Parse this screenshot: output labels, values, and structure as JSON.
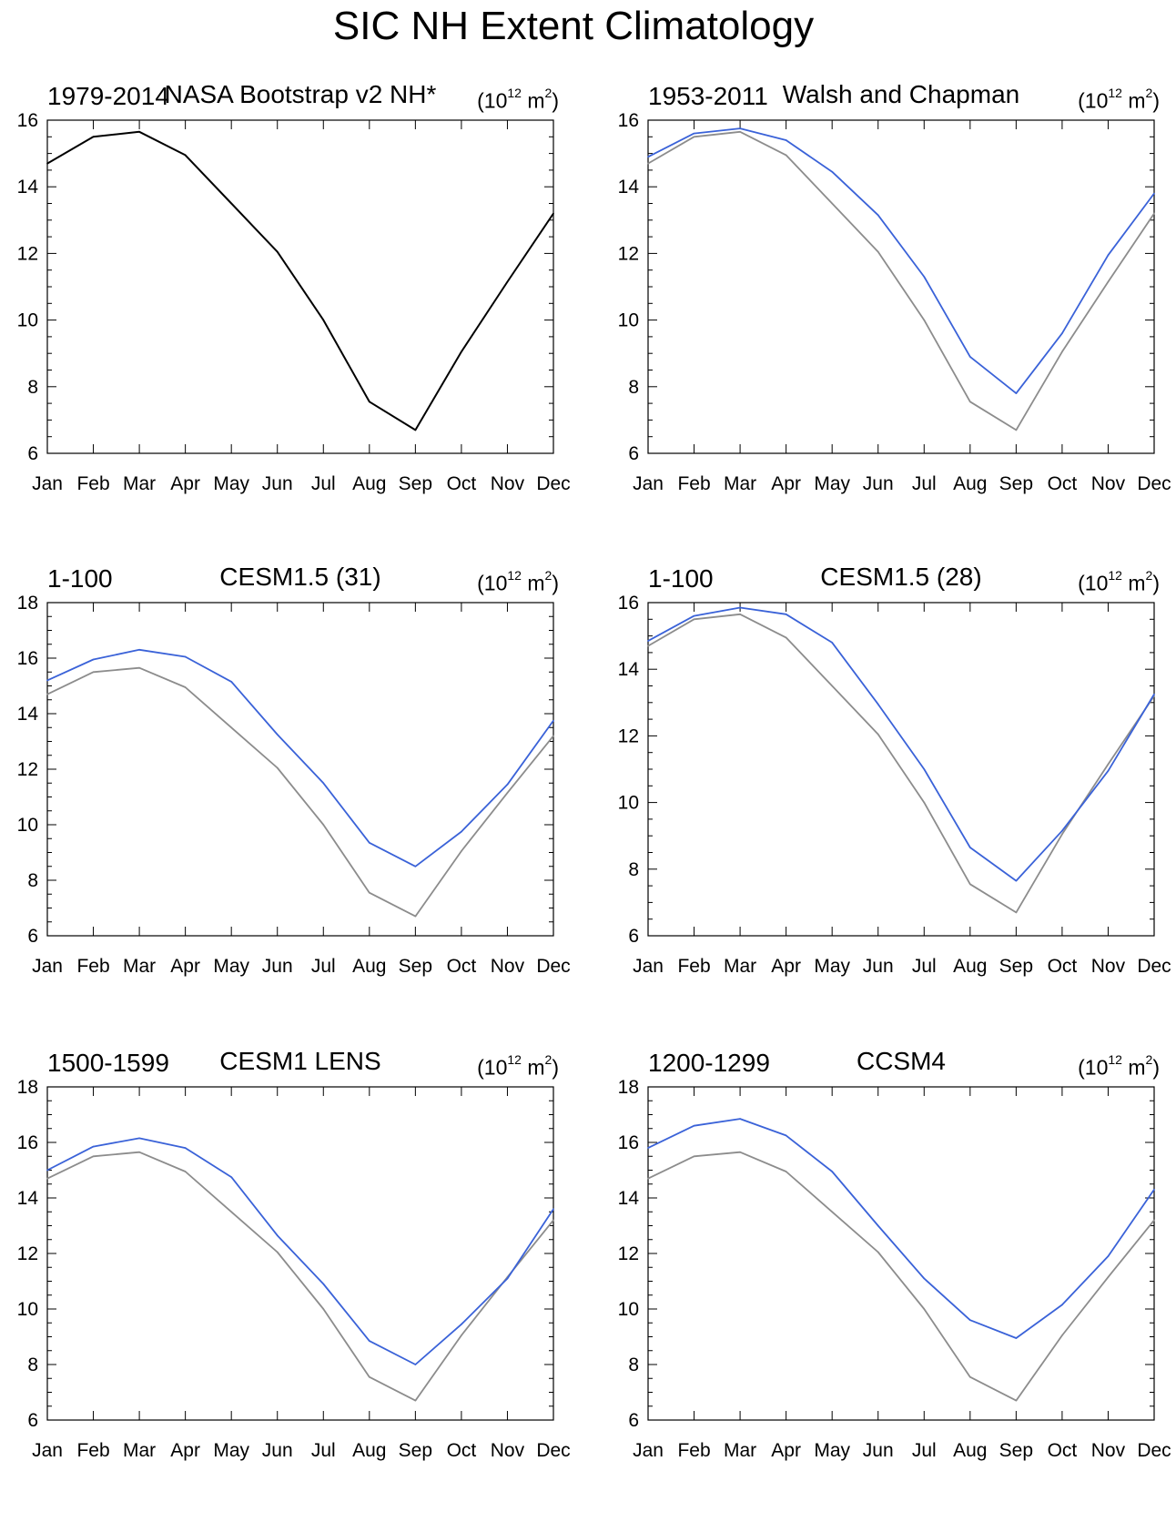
{
  "figure": {
    "title": "SIC NH Extent Climatology"
  },
  "colors": {
    "observed": "#000000",
    "model": "#3a62d8",
    "reference": "#8c8c8c"
  },
  "chart_data": [
    {
      "type": "line",
      "period": "1979-2014",
      "model": "NASA Bootstrap v2 NH*",
      "units_base": "(10",
      "units_exp": "12",
      "units_mid": " m",
      "units_exp2": "2",
      "units_end": ")",
      "categories": [
        "Jan",
        "Feb",
        "Mar",
        "Apr",
        "May",
        "Jun",
        "Jul",
        "Aug",
        "Sep",
        "Oct",
        "Nov",
        "Dec"
      ],
      "ylim": [
        6,
        16
      ],
      "yticks": [
        6,
        8,
        10,
        12,
        14,
        16
      ],
      "series": [
        {
          "name": "NASA Bootstrap v2 NH*",
          "role": "observed",
          "values": [
            14.7,
            15.5,
            15.65,
            14.95,
            13.5,
            12.05,
            10.0,
            7.55,
            6.7,
            9.05,
            11.15,
            13.2
          ]
        }
      ]
    },
    {
      "type": "line",
      "period": "1953-2011",
      "model": "Walsh and Chapman",
      "units_base": "(10",
      "units_exp": "12",
      "units_mid": " m",
      "units_exp2": "2",
      "units_end": ")",
      "categories": [
        "Jan",
        "Feb",
        "Mar",
        "Apr",
        "May",
        "Jun",
        "Jul",
        "Aug",
        "Sep",
        "Oct",
        "Nov",
        "Dec"
      ],
      "ylim": [
        6,
        16
      ],
      "yticks": [
        6,
        8,
        10,
        12,
        14,
        16
      ],
      "series": [
        {
          "name": "Walsh and Chapman",
          "role": "model",
          "values": [
            14.9,
            15.6,
            15.75,
            15.4,
            14.45,
            13.15,
            11.3,
            8.9,
            7.8,
            9.6,
            11.95,
            13.8
          ]
        },
        {
          "name": "NASA Bootstrap v2 NH*",
          "role": "reference",
          "values": [
            14.7,
            15.5,
            15.65,
            14.95,
            13.5,
            12.05,
            10.0,
            7.55,
            6.7,
            9.05,
            11.15,
            13.2
          ]
        }
      ]
    },
    {
      "type": "line",
      "period": "1-100",
      "model": "CESM1.5 (31)",
      "units_base": "(10",
      "units_exp": "12",
      "units_mid": " m",
      "units_exp2": "2",
      "units_end": ")",
      "categories": [
        "Jan",
        "Feb",
        "Mar",
        "Apr",
        "May",
        "Jun",
        "Jul",
        "Aug",
        "Sep",
        "Oct",
        "Nov",
        "Dec"
      ],
      "ylim": [
        6,
        18
      ],
      "yticks": [
        6,
        8,
        10,
        12,
        14,
        16,
        18
      ],
      "series": [
        {
          "name": "CESM1.5 (31)",
          "role": "model",
          "values": [
            15.2,
            15.95,
            16.3,
            16.05,
            15.15,
            13.25,
            11.5,
            9.35,
            8.5,
            9.75,
            11.45,
            13.75
          ]
        },
        {
          "name": "NASA Bootstrap v2 NH*",
          "role": "reference",
          "values": [
            14.7,
            15.5,
            15.65,
            14.95,
            13.5,
            12.05,
            10.0,
            7.55,
            6.7,
            9.05,
            11.15,
            13.2
          ]
        }
      ]
    },
    {
      "type": "line",
      "period": "1-100",
      "model": "CESM1.5 (28)",
      "units_base": "(10",
      "units_exp": "12",
      "units_mid": " m",
      "units_exp2": "2",
      "units_end": ")",
      "categories": [
        "Jan",
        "Feb",
        "Mar",
        "Apr",
        "May",
        "Jun",
        "Jul",
        "Aug",
        "Sep",
        "Oct",
        "Nov",
        "Dec"
      ],
      "ylim": [
        6,
        16
      ],
      "yticks": [
        6,
        8,
        10,
        12,
        14,
        16
      ],
      "series": [
        {
          "name": "CESM1.5 (28)",
          "role": "model",
          "values": [
            14.85,
            15.6,
            15.85,
            15.65,
            14.8,
            12.95,
            11.0,
            8.65,
            7.65,
            9.15,
            10.95,
            13.25
          ]
        },
        {
          "name": "NASA Bootstrap v2 NH*",
          "role": "reference",
          "values": [
            14.7,
            15.5,
            15.65,
            14.95,
            13.5,
            12.05,
            10.0,
            7.55,
            6.7,
            9.05,
            11.15,
            13.2
          ]
        }
      ]
    },
    {
      "type": "line",
      "period": "1500-1599",
      "model": "CESM1 LENS",
      "units_base": "(10",
      "units_exp": "12",
      "units_mid": " m",
      "units_exp2": "2",
      "units_end": ")",
      "categories": [
        "Jan",
        "Feb",
        "Mar",
        "Apr",
        "May",
        "Jun",
        "Jul",
        "Aug",
        "Sep",
        "Oct",
        "Nov",
        "Dec"
      ],
      "ylim": [
        6,
        18
      ],
      "yticks": [
        6,
        8,
        10,
        12,
        14,
        16,
        18
      ],
      "series": [
        {
          "name": "CESM1 LENS",
          "role": "model",
          "values": [
            15.0,
            15.85,
            16.15,
            15.8,
            14.75,
            12.65,
            10.9,
            8.85,
            8.0,
            9.45,
            11.1,
            13.6
          ]
        },
        {
          "name": "NASA Bootstrap v2 NH*",
          "role": "reference",
          "values": [
            14.7,
            15.5,
            15.65,
            14.95,
            13.5,
            12.05,
            10.0,
            7.55,
            6.7,
            9.05,
            11.15,
            13.2
          ]
        }
      ]
    },
    {
      "type": "line",
      "period": "1200-1299",
      "model": "CCSM4",
      "units_base": "(10",
      "units_exp": "12",
      "units_mid": " m",
      "units_exp2": "2",
      "units_end": ")",
      "categories": [
        "Jan",
        "Feb",
        "Mar",
        "Apr",
        "May",
        "Jun",
        "Jul",
        "Aug",
        "Sep",
        "Oct",
        "Nov",
        "Dec"
      ],
      "ylim": [
        6,
        18
      ],
      "yticks": [
        6,
        8,
        10,
        12,
        14,
        16,
        18
      ],
      "series": [
        {
          "name": "CCSM4",
          "role": "model",
          "values": [
            15.8,
            16.6,
            16.85,
            16.25,
            14.95,
            13.0,
            11.1,
            9.6,
            8.95,
            10.15,
            11.9,
            14.3
          ]
        },
        {
          "name": "NASA Bootstrap v2 NH*",
          "role": "reference",
          "values": [
            14.7,
            15.5,
            15.65,
            14.95,
            13.5,
            12.05,
            10.0,
            7.55,
            6.7,
            9.05,
            11.15,
            13.2
          ]
        }
      ]
    }
  ]
}
